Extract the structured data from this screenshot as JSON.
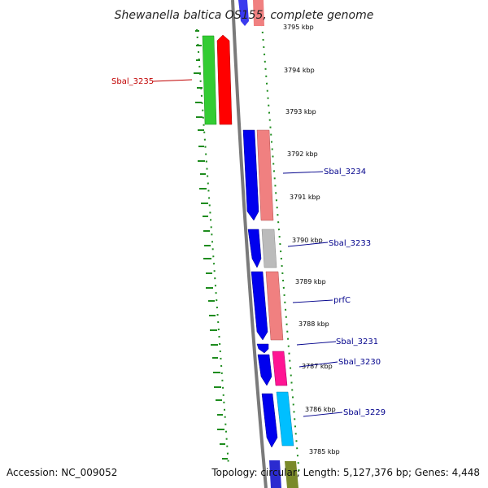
{
  "title": "Shewanella baltica OS155, complete genome",
  "footer": {
    "accession": "Accession: NC_009052",
    "topology": "Topology: circular; Length: 5,127,376 bp; Genes: 4,448"
  },
  "colors": {
    "backbone": "#808080",
    "gc_ticks": "#1e8c1e",
    "forward_cds": "#0000ee",
    "label_forward": "#00008b",
    "label_reverse": "#c00000"
  },
  "ticks": [
    {
      "label": "3795 kbp"
    },
    {
      "label": "3794 kbp"
    },
    {
      "label": "3793 kbp"
    },
    {
      "label": "3792 kbp"
    },
    {
      "label": "3791 kbp"
    },
    {
      "label": "3790 kbp"
    },
    {
      "label": "3789 kbp"
    },
    {
      "label": "3788 kbp"
    },
    {
      "label": "3787 kbp"
    },
    {
      "label": "3786 kbp"
    },
    {
      "label": "3785 kbp"
    }
  ],
  "gene_labels": [
    {
      "name": "Sbal_3235"
    },
    {
      "name": "Sbal_3234"
    },
    {
      "name": "Sbal_3233"
    },
    {
      "name": "prfC"
    },
    {
      "name": "Sbal_3231"
    },
    {
      "name": "Sbal_3230"
    },
    {
      "name": "Sbal_3229"
    }
  ]
}
